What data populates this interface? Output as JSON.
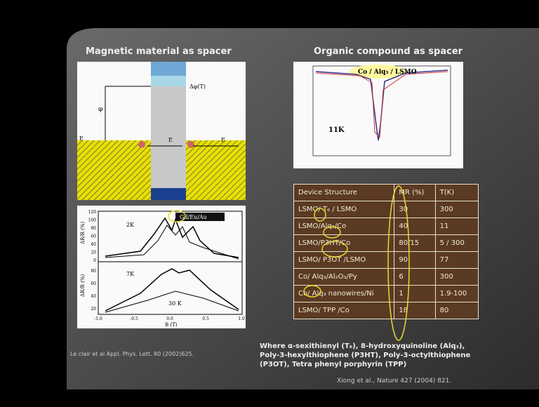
{
  "slide": {
    "left_title": "Magnetic material as spacer",
    "right_title": "Organic compound as spacer",
    "diagram": {
      "delta_label": "Δφ(T)",
      "phi_label": "φ",
      "ef_label": "E",
      "e1": "E",
      "e2": "E"
    },
    "left_plot": {
      "legend": "Gd/Eu/Au",
      "t1": "2K",
      "t2": "7K",
      "t3": "30 K",
      "ylabel1": "ΔR/R (%)",
      "ylabel2": "ΔR/R (%)",
      "xlabel": "B (T)",
      "yticks_top": [
        "120",
        "100",
        "80",
        "60",
        "40",
        "20",
        "0"
      ],
      "yticks_bottom": [
        "80",
        "60",
        "40",
        "20"
      ],
      "xticks": [
        "-1.0",
        "-0.5",
        "0.0",
        "0.5",
        "1.0"
      ]
    },
    "right_plot": {
      "label": "Co / Alq₃ / LSMO",
      "temp": "11K"
    },
    "table": {
      "header": [
        "Device Structure",
        "MR (%)",
        "T(K)"
      ],
      "rows": [
        [
          "LSMO/ T₆ / LSMO",
          "30",
          "300"
        ],
        [
          "LSMO/Alq₃/Co",
          "40",
          "11"
        ],
        [
          "LSMO/P3HT/Co",
          "80/15",
          "5 / 300"
        ],
        [
          "LSMO/ P3OT /LSMO",
          "90",
          "77"
        ],
        [
          "Co/ Alq₃/Al₂O₃/Py",
          "6",
          "300"
        ],
        [
          "Co/ Alq₃ nanowires/Ni",
          "1",
          "1.9-100"
        ],
        [
          "LSMO/ TPP /Co",
          "18",
          "80"
        ]
      ]
    },
    "left_citation": "Le clair et al Appl. Phys. Lett. 80 (2002)625.",
    "note_lines": [
      "Where α-sexithienyl (T₆), 8-hydroxyquinoline (Alq₃),",
      "Poly-3-hexylthiophene (P3HT), Poly-3-octylthiophene",
      "(P3OT), Tetra phenyl porphyrin (TPP)"
    ],
    "right_citation": "Xiong et al., Nature 427 (2004) 821."
  }
}
